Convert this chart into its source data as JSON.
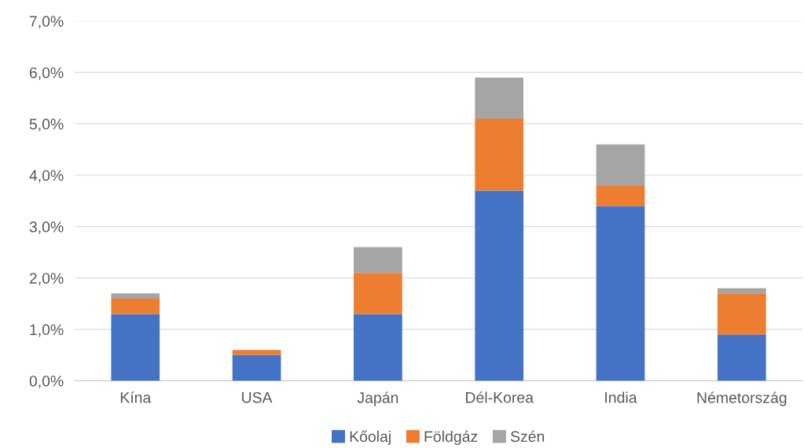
{
  "chart_data": {
    "type": "bar",
    "stacked": true,
    "categories": [
      "Kína",
      "USA",
      "Japán",
      "Dél-Korea",
      "India",
      "Németország"
    ],
    "series": [
      {
        "name": "Kőolaj",
        "color": "#4472c4",
        "values": [
          1.3,
          0.5,
          1.3,
          3.7,
          3.4,
          0.9
        ]
      },
      {
        "name": "Földgáz",
        "color": "#ed7d31",
        "values": [
          0.3,
          0.1,
          0.8,
          1.4,
          0.4,
          0.8
        ]
      },
      {
        "name": "Szén",
        "color": "#a5a5a5",
        "values": [
          0.1,
          0,
          0.5,
          0.8,
          0.8,
          0.1
        ]
      }
    ],
    "ylim": [
      0,
      7
    ],
    "yticks": [
      {
        "value": 0,
        "label": "0,0%"
      },
      {
        "value": 1,
        "label": "1,0%"
      },
      {
        "value": 2,
        "label": "2,0%"
      },
      {
        "value": 3,
        "label": "3,0%"
      },
      {
        "value": 4,
        "label": "4,0%"
      },
      {
        "value": 5,
        "label": "5,0%"
      },
      {
        "value": 6,
        "label": "6,0%"
      },
      {
        "value": 7,
        "label": "7,0%"
      }
    ],
    "grid": "y",
    "legend": "bottom"
  }
}
